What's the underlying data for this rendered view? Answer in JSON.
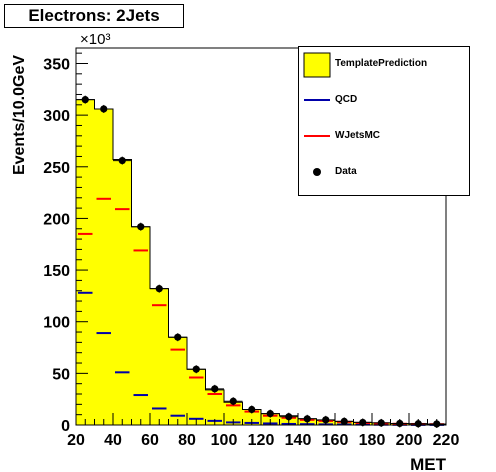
{
  "chart_data": {
    "type": "bar",
    "title": "Electrons: 2Jets",
    "xlabel": "MET",
    "ylabel": "Events/10.0GeV",
    "y_multiplier": "×10³",
    "xlim": [
      20,
      220
    ],
    "ylim": [
      0,
      365
    ],
    "x_ticks": [
      20,
      40,
      60,
      80,
      100,
      120,
      140,
      160,
      180,
      200,
      220
    ],
    "y_ticks": [
      0,
      50,
      100,
      150,
      200,
      250,
      300,
      350
    ],
    "bin_edges": [
      20,
      30,
      40,
      50,
      60,
      70,
      80,
      90,
      100,
      110,
      120,
      130,
      140,
      150,
      160,
      170,
      180,
      190,
      200,
      210,
      220
    ],
    "legend_position": "top-right",
    "series": [
      {
        "name": "TemplatePrediction",
        "kind": "filled-histogram",
        "color": "#ffff00",
        "values": [
          315,
          306,
          257,
          192,
          132,
          85,
          54,
          34,
          22,
          15,
          11,
          9,
          6,
          4.5,
          3.5,
          2.5,
          2,
          1.5,
          1.2,
          1
        ]
      },
      {
        "name": "QCD",
        "kind": "step-segments",
        "color": "#0000aa",
        "values": [
          128,
          89,
          51,
          29,
          16,
          9,
          6,
          4,
          2.5,
          2,
          1.5,
          1,
          0.8,
          0.6,
          0.5,
          0.4,
          0.3,
          0.2,
          0.1,
          0.1
        ]
      },
      {
        "name": "WJetsMC",
        "kind": "step-segments",
        "color": "#ff0000",
        "values": [
          185,
          219,
          209,
          169,
          116,
          73,
          46,
          30,
          19,
          13,
          9,
          7,
          5,
          4,
          3,
          2,
          1.6,
          1.2,
          1,
          0.8
        ]
      },
      {
        "name": "Data",
        "kind": "points",
        "color": "#000000",
        "values": [
          315,
          306,
          256,
          192,
          132,
          85,
          54,
          35,
          23,
          15,
          11,
          8,
          6,
          5,
          3.5,
          2.5,
          2,
          1.5,
          1.2,
          1
        ]
      }
    ]
  },
  "legend": {
    "items": [
      {
        "label": "TemplatePrediction",
        "symbol": "box",
        "color": "#ffff00"
      },
      {
        "label": "QCD",
        "symbol": "line",
        "color": "#0000aa"
      },
      {
        "label": "WJetsMC",
        "symbol": "line",
        "color": "#ff0000"
      },
      {
        "label": "Data",
        "symbol": "dot",
        "color": "#000000"
      }
    ]
  }
}
